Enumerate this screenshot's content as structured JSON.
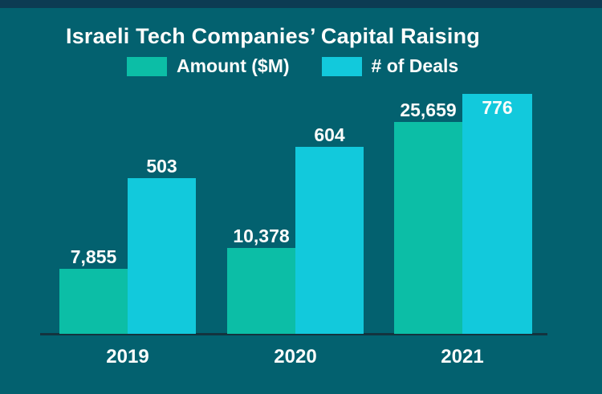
{
  "window": {
    "top_bar_color": "#0c3b53",
    "background_color": "#03616f",
    "text_color": "#fdfdfb"
  },
  "chart_data": {
    "type": "bar",
    "title": "Israeli Tech Companies’ Capital Raising",
    "categories": [
      "2019",
      "2020",
      "2021"
    ],
    "series": [
      {
        "name": "Amount ($M)",
        "values": [
          7855,
          10378,
          25659
        ],
        "data_labels": [
          "7,855",
          "10,378",
          "25,659"
        ],
        "color": "#0cbea6",
        "label_placement": [
          "above",
          "above",
          "above"
        ]
      },
      {
        "name": "# of Deals",
        "values": [
          503,
          604,
          776
        ],
        "data_labels": [
          "503",
          "604",
          "776"
        ],
        "color": "#12c9dc",
        "label_placement": [
          "above",
          "above",
          "inside"
        ]
      }
    ],
    "legend_position": "top-center",
    "grid": false,
    "y_axis_visible": false,
    "x_axis": {
      "baseline_visible": true,
      "color": "#14333e"
    }
  }
}
